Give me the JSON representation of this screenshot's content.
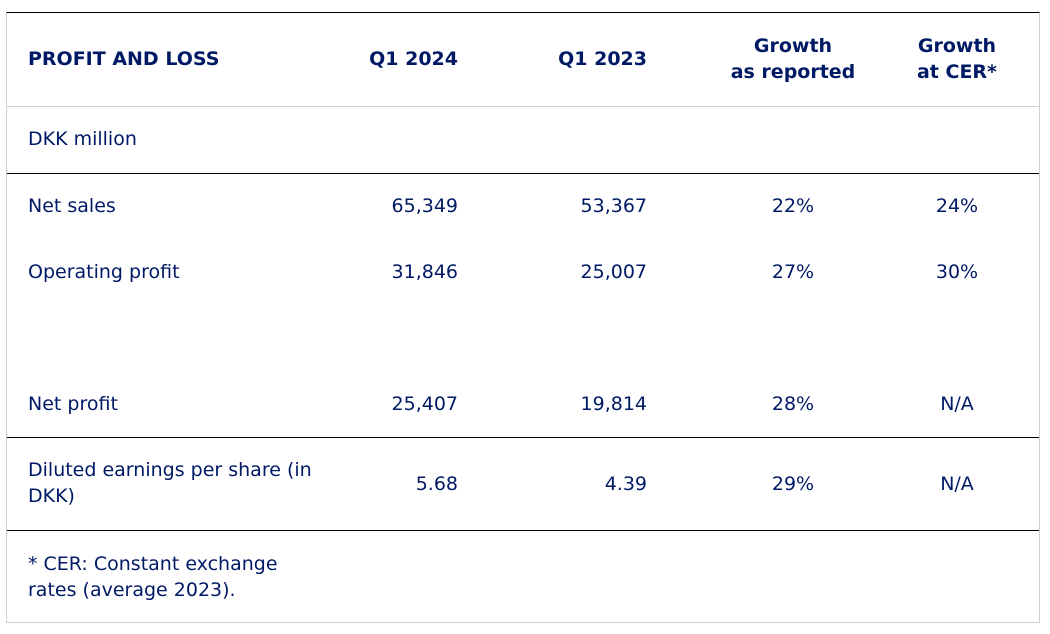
{
  "table": {
    "headers": {
      "section": "PROFIT AND LOSS",
      "q1_2024": "Q1 2024",
      "q1_2023": "Q1 2023",
      "growth_reported_line1": "Growth",
      "growth_reported_line2": "as reported",
      "growth_cer_line1": "Growth",
      "growth_cer_line2": "at CER*"
    },
    "unit": "DKK million",
    "rows": [
      {
        "label": "Net sales",
        "q1_2024": "65,349",
        "q1_2023": "53,367",
        "growth": "22%",
        "growth_cer": "24%"
      },
      {
        "label": "Operating profit",
        "q1_2024": "31,846",
        "q1_2023": "25,007",
        "growth": "27%",
        "growth_cer": "30%"
      },
      {
        "label": "Net profit",
        "q1_2024": "25,407",
        "q1_2023": "19,814",
        "growth": "28%",
        "growth_cer": "N/A"
      },
      {
        "label_line1": "Diluted earnings per share (in",
        "label_line2": "DKK)",
        "q1_2024": "5.68",
        "q1_2023": "4.39",
        "growth": "29%",
        "growth_cer": "N/A"
      }
    ],
    "footnote_line1": "* CER: Constant exchange",
    "footnote_line2": "rates (average 2023)."
  }
}
